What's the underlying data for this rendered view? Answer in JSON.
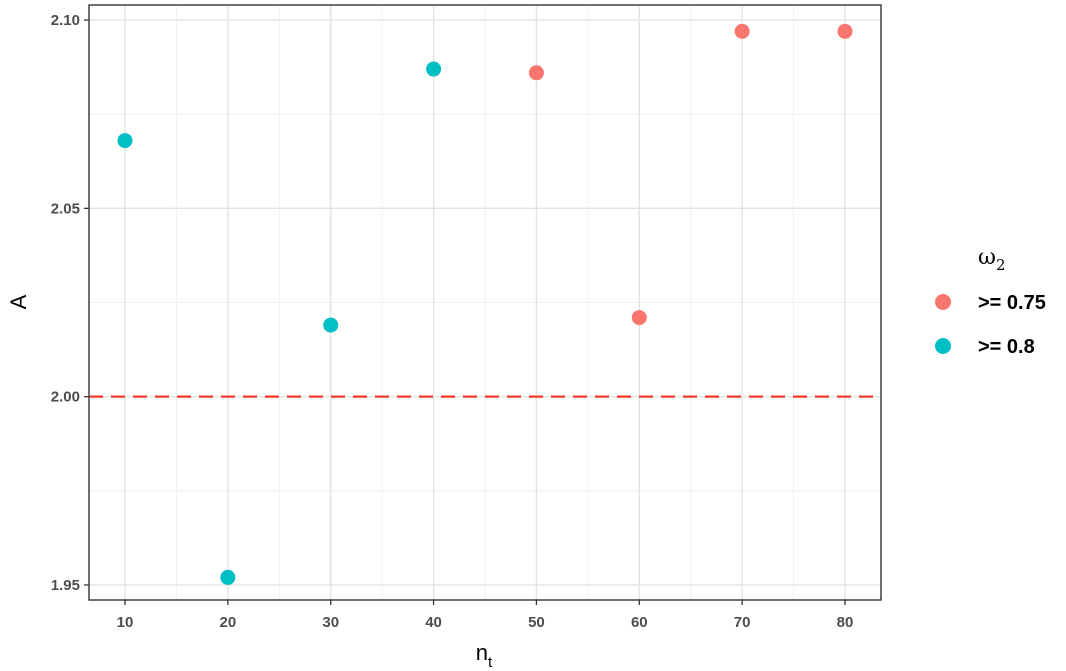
{
  "chart_data": {
    "type": "scatter",
    "title": "",
    "xlabel": "n",
    "xlabel_sub": "t",
    "ylabel": "A",
    "xlim": [
      6.5,
      83.5
    ],
    "ylim": [
      1.946,
      2.104
    ],
    "x_ticks": [
      10,
      20,
      30,
      40,
      50,
      60,
      70,
      80
    ],
    "x_tick_labels": [
      "10",
      "20",
      "30",
      "40",
      "50",
      "60",
      "70",
      "80"
    ],
    "y_ticks": [
      1.95,
      2.0,
      2.05,
      2.1
    ],
    "y_tick_labels": [
      "1.95",
      "2.00",
      "2.05",
      "2.10"
    ],
    "grid": true,
    "reference_line": {
      "y": 2.0,
      "style": "dashed",
      "color": "#ef3b2c"
    },
    "legend": {
      "title": "ω",
      "title_sub": "2",
      "position": "right"
    },
    "series": [
      {
        "name": ">= 0.75",
        "color": "#f8766d",
        "points": [
          {
            "x": 50,
            "y": 2.086
          },
          {
            "x": 60,
            "y": 2.021
          },
          {
            "x": 70,
            "y": 2.097
          },
          {
            "x": 80,
            "y": 2.097
          }
        ]
      },
      {
        "name": ">= 0.8",
        "color": "#00bfc4",
        "points": [
          {
            "x": 10,
            "y": 2.068
          },
          {
            "x": 20,
            "y": 1.952
          },
          {
            "x": 30,
            "y": 2.019
          },
          {
            "x": 40,
            "y": 2.087
          }
        ]
      }
    ]
  }
}
